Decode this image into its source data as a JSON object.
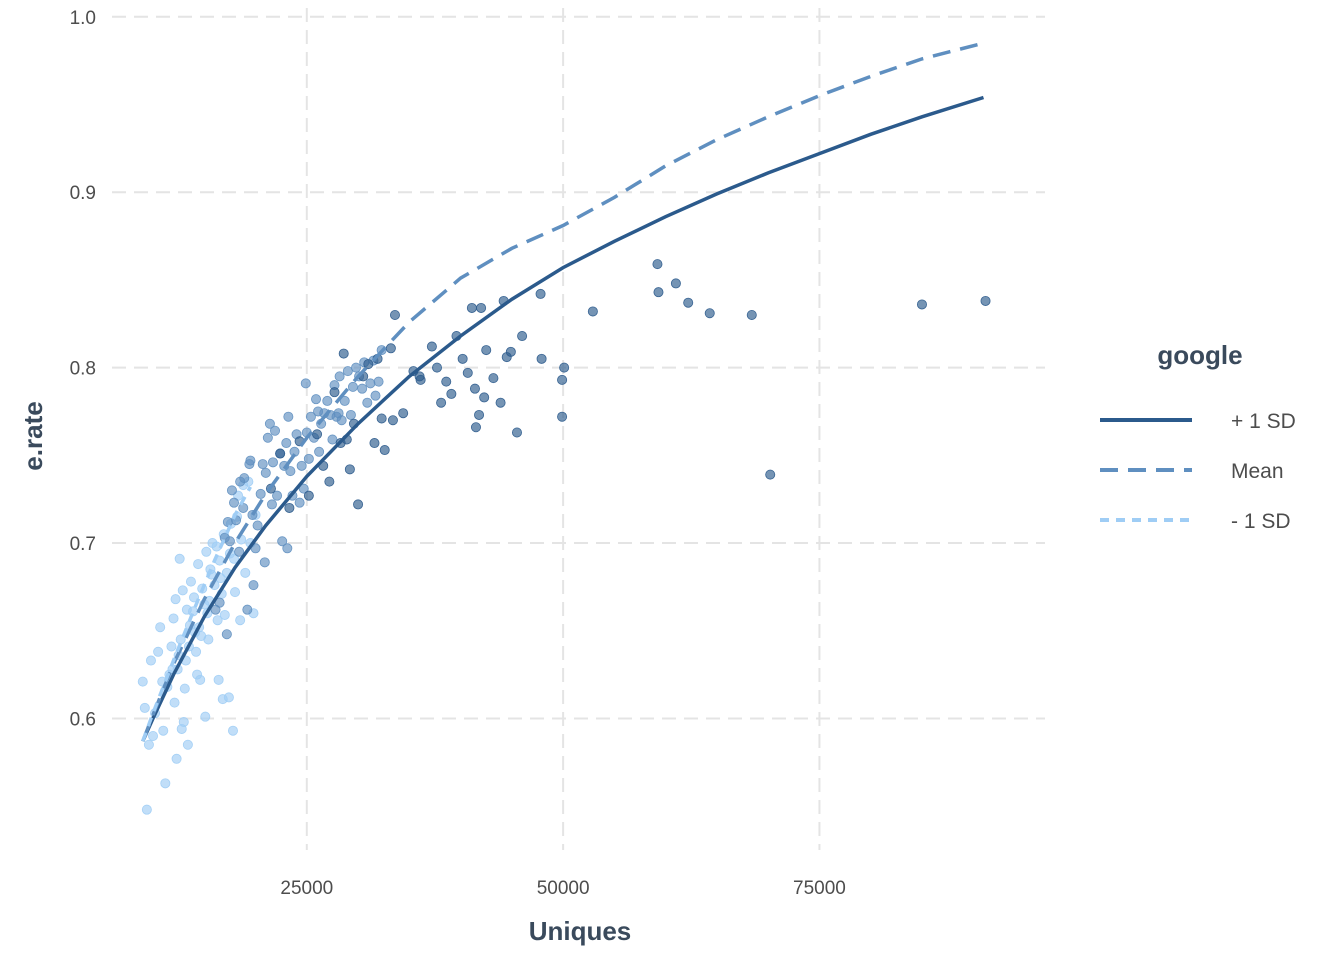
{
  "chart_data": {
    "type": "scatter",
    "title": "",
    "xlabel": "Uniques",
    "ylabel": "e.rate",
    "xlim": [
      6000,
      97000
    ],
    "ylim": [
      0.525,
      1.005
    ],
    "xticks": [
      25000,
      50000,
      75000
    ],
    "xtick_labels": [
      "25000",
      "50000",
      "75000"
    ],
    "yticks": [
      0.6,
      0.7,
      0.8,
      0.9,
      1.0
    ],
    "ytick_labels": [
      "0.6",
      "0.7",
      "0.8",
      "0.9",
      "1.0"
    ],
    "grid": true,
    "legend": {
      "title": "google",
      "placement": "right",
      "entries": [
        {
          "label": "+ 1 SD",
          "color": "#2b5a8c",
          "dash": "solid"
        },
        {
          "label": "Mean",
          "color": "#5f8fc0",
          "dash": "dashed"
        },
        {
          "label": "- 1 SD",
          "color": "#9fcdf5",
          "dash": "dotted"
        }
      ]
    },
    "lines": [
      {
        "name": "+ 1 SD",
        "color": "#2b5a8c",
        "dash": "solid",
        "x": [
          9000,
          10000,
          12000,
          15000,
          18000,
          21000,
          25000,
          30000,
          35000,
          40000,
          45000,
          50000,
          55000,
          60000,
          65000,
          70000,
          75000,
          80000,
          85000,
          91000
        ],
        "y": [
          0.587,
          0.6,
          0.625,
          0.658,
          0.686,
          0.71,
          0.738,
          0.768,
          0.795,
          0.818,
          0.839,
          0.857,
          0.872,
          0.886,
          0.899,
          0.911,
          0.922,
          0.933,
          0.943,
          0.954
        ]
      },
      {
        "name": "Mean",
        "color": "#5f8fc0",
        "dash": "dashed",
        "x": [
          9000,
          10000,
          12000,
          15000,
          18000,
          21000,
          25000,
          30000,
          35000,
          40000,
          45000,
          50000,
          55000,
          60000,
          65000,
          70000,
          75000,
          80000,
          85000,
          91000
        ],
        "y": [
          0.587,
          0.602,
          0.631,
          0.668,
          0.7,
          0.728,
          0.76,
          0.795,
          0.826,
          0.851,
          0.868,
          0.881,
          0.897,
          0.915,
          0.93,
          0.943,
          0.955,
          0.966,
          0.976,
          0.985
        ]
      },
      {
        "name": "- 1 SD",
        "color": "#9fcdf5",
        "dash": "dotted",
        "x": [
          9000,
          10000,
          12000,
          14000,
          16000,
          18000,
          19500
        ],
        "y": [
          0.587,
          0.603,
          0.633,
          0.662,
          0.69,
          0.716,
          0.732
        ]
      }
    ],
    "series": [
      {
        "name": "- 1 SD",
        "color": "#9fcdf5",
        "points": [
          [
            9000,
            0.621
          ],
          [
            9200,
            0.606
          ],
          [
            9400,
            0.548
          ],
          [
            9600,
            0.585
          ],
          [
            9800,
            0.633
          ],
          [
            10000,
            0.59
          ],
          [
            10200,
            0.603
          ],
          [
            10500,
            0.638
          ],
          [
            10700,
            0.652
          ],
          [
            10900,
            0.621
          ],
          [
            11000,
            0.593
          ],
          [
            11200,
            0.563
          ],
          [
            11400,
            0.618
          ],
          [
            11600,
            0.625
          ],
          [
            11800,
            0.641
          ],
          [
            12000,
            0.657
          ],
          [
            12100,
            0.609
          ],
          [
            12200,
            0.668
          ],
          [
            12300,
            0.577
          ],
          [
            12400,
            0.628
          ],
          [
            12500,
            0.636
          ],
          [
            12600,
            0.691
          ],
          [
            12700,
            0.645
          ],
          [
            12800,
            0.594
          ],
          [
            13000,
            0.598
          ],
          [
            13100,
            0.617
          ],
          [
            13200,
            0.633
          ],
          [
            13400,
            0.585
          ],
          [
            13500,
            0.641
          ],
          [
            13600,
            0.653
          ],
          [
            13700,
            0.678
          ],
          [
            13900,
            0.661
          ],
          [
            14000,
            0.669
          ],
          [
            14200,
            0.638
          ],
          [
            14300,
            0.625
          ],
          [
            14400,
            0.688
          ],
          [
            14500,
            0.652
          ],
          [
            14600,
            0.622
          ],
          [
            14700,
            0.647
          ],
          [
            14800,
            0.674
          ],
          [
            15000,
            0.665
          ],
          [
            15100,
            0.601
          ],
          [
            15200,
            0.695
          ],
          [
            15300,
            0.66
          ],
          [
            15400,
            0.645
          ],
          [
            15500,
            0.667
          ],
          [
            15700,
            0.682
          ],
          [
            15800,
            0.7
          ],
          [
            16000,
            0.676
          ],
          [
            16200,
            0.698
          ],
          [
            16300,
            0.656
          ],
          [
            16400,
            0.622
          ],
          [
            16500,
            0.69
          ],
          [
            16700,
            0.671
          ],
          [
            16800,
            0.611
          ],
          [
            16900,
            0.705
          ],
          [
            17000,
            0.659
          ],
          [
            17200,
            0.683
          ],
          [
            17400,
            0.612
          ],
          [
            17500,
            0.694
          ],
          [
            17600,
            0.711
          ],
          [
            17800,
            0.593
          ],
          [
            17900,
            0.691
          ],
          [
            18000,
            0.672
          ],
          [
            18200,
            0.715
          ],
          [
            18300,
            0.727
          ],
          [
            18500,
            0.656
          ],
          [
            18600,
            0.702
          ],
          [
            18800,
            0.733
          ],
          [
            19000,
            0.683
          ],
          [
            19300,
            0.735
          ],
          [
            19500,
            0.7
          ],
          [
            19800,
            0.66
          ],
          [
            20000,
            0.716
          ],
          [
            12900,
            0.673
          ],
          [
            13300,
            0.662
          ],
          [
            14100,
            0.649
          ],
          [
            11900,
            0.628
          ],
          [
            15600,
            0.685
          ],
          [
            16600,
            0.68
          ]
        ]
      },
      {
        "name": "Mean",
        "color": "#5f8fc0",
        "points": [
          [
            16100,
            0.662
          ],
          [
            16500,
            0.666
          ],
          [
            17000,
            0.703
          ],
          [
            17200,
            0.648
          ],
          [
            17300,
            0.712
          ],
          [
            17500,
            0.701
          ],
          [
            17700,
            0.73
          ],
          [
            17900,
            0.723
          ],
          [
            18100,
            0.713
          ],
          [
            18400,
            0.695
          ],
          [
            18500,
            0.735
          ],
          [
            18800,
            0.72
          ],
          [
            18900,
            0.737
          ],
          [
            19200,
            0.662
          ],
          [
            19400,
            0.745
          ],
          [
            19500,
            0.747
          ],
          [
            19700,
            0.716
          ],
          [
            19800,
            0.676
          ],
          [
            20000,
            0.697
          ],
          [
            20200,
            0.71
          ],
          [
            20500,
            0.728
          ],
          [
            20700,
            0.745
          ],
          [
            20900,
            0.689
          ],
          [
            21000,
            0.74
          ],
          [
            21200,
            0.76
          ],
          [
            21400,
            0.768
          ],
          [
            21600,
            0.722
          ],
          [
            21700,
            0.746
          ],
          [
            21900,
            0.764
          ],
          [
            22100,
            0.727
          ],
          [
            22400,
            0.751
          ],
          [
            22600,
            0.701
          ],
          [
            22800,
            0.744
          ],
          [
            23000,
            0.757
          ],
          [
            23200,
            0.772
          ],
          [
            23400,
            0.741
          ],
          [
            23600,
            0.727
          ],
          [
            23800,
            0.752
          ],
          [
            24000,
            0.762
          ],
          [
            24300,
            0.723
          ],
          [
            24500,
            0.744
          ],
          [
            24700,
            0.731
          ],
          [
            25000,
            0.763
          ],
          [
            25200,
            0.748
          ],
          [
            25400,
            0.772
          ],
          [
            25700,
            0.76
          ],
          [
            25900,
            0.782
          ],
          [
            26100,
            0.775
          ],
          [
            26400,
            0.768
          ],
          [
            26700,
            0.774
          ],
          [
            27000,
            0.781
          ],
          [
            27300,
            0.773
          ],
          [
            27500,
            0.759
          ],
          [
            27700,
            0.79
          ],
          [
            27900,
            0.772
          ],
          [
            28200,
            0.795
          ],
          [
            28400,
            0.77
          ],
          [
            28700,
            0.781
          ],
          [
            29000,
            0.798
          ],
          [
            29300,
            0.773
          ],
          [
            29500,
            0.789
          ],
          [
            29800,
            0.8
          ],
          [
            30100,
            0.795
          ],
          [
            30400,
            0.788
          ],
          [
            30600,
            0.803
          ],
          [
            30900,
            0.78
          ],
          [
            31200,
            0.791
          ],
          [
            31500,
            0.804
          ],
          [
            31700,
            0.784
          ],
          [
            32000,
            0.792
          ],
          [
            32300,
            0.81
          ],
          [
            26200,
            0.752
          ],
          [
            23100,
            0.697
          ],
          [
            24900,
            0.791
          ],
          [
            28100,
            0.774
          ]
        ]
      },
      {
        "name": "+ 1 SD",
        "color": "#2b5a8c",
        "points": [
          [
            21500,
            0.731
          ],
          [
            22400,
            0.751
          ],
          [
            23300,
            0.72
          ],
          [
            24300,
            0.758
          ],
          [
            25200,
            0.727
          ],
          [
            26000,
            0.762
          ],
          [
            26600,
            0.744
          ],
          [
            27200,
            0.735
          ],
          [
            27700,
            0.786
          ],
          [
            28300,
            0.757
          ],
          [
            28600,
            0.808
          ],
          [
            28900,
            0.759
          ],
          [
            29200,
            0.742
          ],
          [
            29600,
            0.768
          ],
          [
            30000,
            0.722
          ],
          [
            30500,
            0.795
          ],
          [
            31000,
            0.802
          ],
          [
            31600,
            0.757
          ],
          [
            31900,
            0.805
          ],
          [
            32300,
            0.771
          ],
          [
            32600,
            0.753
          ],
          [
            33200,
            0.811
          ],
          [
            33600,
            0.83
          ],
          [
            34400,
            0.774
          ],
          [
            35400,
            0.798
          ],
          [
            36100,
            0.793
          ],
          [
            37200,
            0.812
          ],
          [
            38100,
            0.78
          ],
          [
            38600,
            0.792
          ],
          [
            39100,
            0.785
          ],
          [
            39600,
            0.818
          ],
          [
            40200,
            0.805
          ],
          [
            40700,
            0.797
          ],
          [
            41100,
            0.834
          ],
          [
            41400,
            0.788
          ],
          [
            41500,
            0.766
          ],
          [
            41800,
            0.773
          ],
          [
            42000,
            0.834
          ],
          [
            42300,
            0.783
          ],
          [
            42500,
            0.81
          ],
          [
            43200,
            0.794
          ],
          [
            43900,
            0.78
          ],
          [
            44200,
            0.838
          ],
          [
            44500,
            0.806
          ],
          [
            44900,
            0.809
          ],
          [
            45500,
            0.763
          ],
          [
            46000,
            0.818
          ],
          [
            47800,
            0.842
          ],
          [
            47900,
            0.805
          ],
          [
            49900,
            0.793
          ],
          [
            50100,
            0.8
          ],
          [
            49900,
            0.772
          ],
          [
            52900,
            0.832
          ],
          [
            59200,
            0.859
          ],
          [
            59300,
            0.843
          ],
          [
            61000,
            0.848
          ],
          [
            62200,
            0.837
          ],
          [
            64300,
            0.831
          ],
          [
            68400,
            0.83
          ],
          [
            70200,
            0.739
          ],
          [
            85000,
            0.836
          ],
          [
            91200,
            0.838
          ],
          [
            37700,
            0.8
          ],
          [
            36000,
            0.795
          ],
          [
            33400,
            0.77
          ]
        ]
      }
    ]
  }
}
